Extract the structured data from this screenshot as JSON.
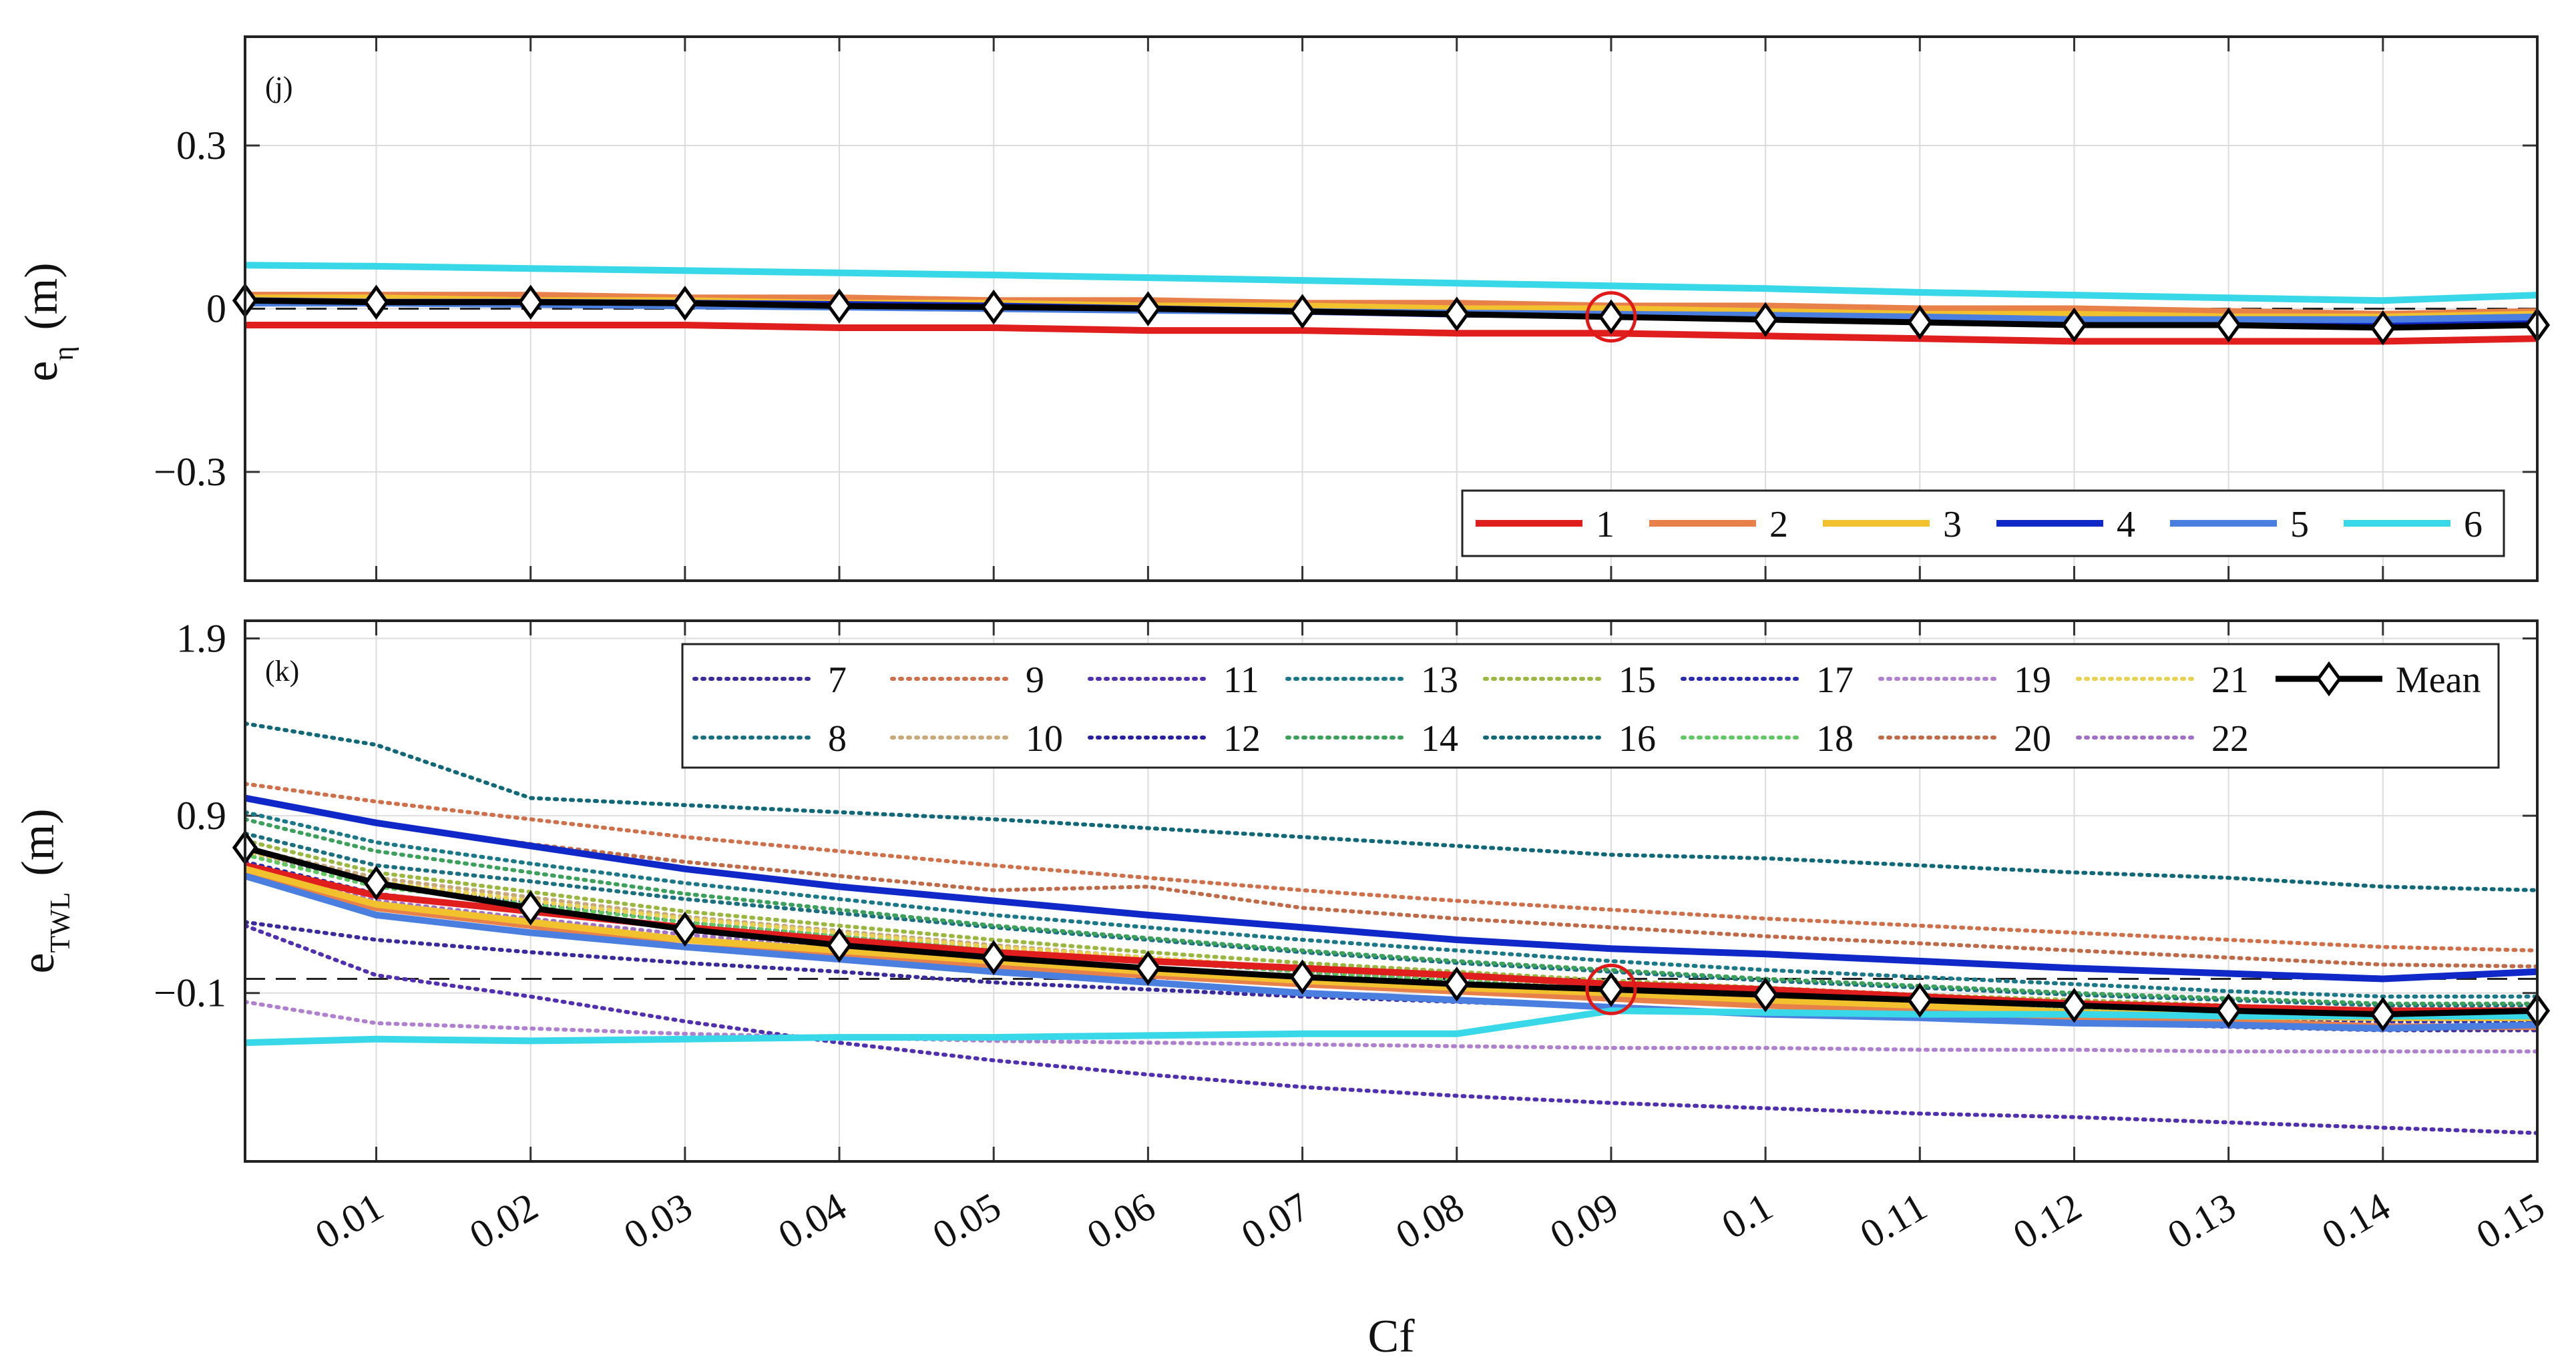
{
  "chart_data": [
    {
      "type": "line",
      "panel_label": "(j)",
      "ylabel": "e",
      "ylabel_subscript": "η",
      "ylabel_unit": "(m)",
      "xlabel": "",
      "x": [
        0.0015,
        0.01,
        0.02,
        0.03,
        0.04,
        0.05,
        0.06,
        0.07,
        0.08,
        0.09,
        0.1,
        0.11,
        0.12,
        0.13,
        0.14,
        0.15
      ],
      "xlim": [
        0.0015,
        0.15
      ],
      "ylim": [
        -0.5,
        0.5
      ],
      "yticks": [
        {
          "value": 0.3,
          "label": "0.3"
        },
        {
          "value": 0,
          "label": "0"
        },
        {
          "value": -0.3,
          "label": "−0.3"
        }
      ],
      "grid": true,
      "reference_line": {
        "y": 0,
        "style": "dashed"
      },
      "highlight_x": 0.09,
      "legend": {
        "placement": "bottom-right",
        "columns": 6
      },
      "series": [
        {
          "name": "1",
          "style": "solid",
          "color": "#e01e1e",
          "values": [
            -0.03,
            -0.03,
            -0.03,
            -0.03,
            -0.035,
            -0.035,
            -0.04,
            -0.04,
            -0.045,
            -0.045,
            -0.05,
            -0.055,
            -0.06,
            -0.06,
            -0.06,
            -0.055
          ]
        },
        {
          "name": "2",
          "style": "solid",
          "color": "#e8804a",
          "values": [
            0.025,
            0.025,
            0.025,
            0.02,
            0.02,
            0.015,
            0.015,
            0.01,
            0.01,
            0.005,
            0.005,
            0.0,
            0.0,
            -0.005,
            -0.01,
            -0.005
          ]
        },
        {
          "name": "3",
          "style": "solid",
          "color": "#f2c12e",
          "values": [
            0.02,
            0.02,
            0.015,
            0.015,
            0.01,
            0.01,
            0.005,
            0.005,
            0.0,
            0.0,
            -0.005,
            -0.01,
            -0.01,
            -0.015,
            -0.015,
            -0.01
          ]
        },
        {
          "name": "4",
          "style": "solid",
          "color": "#1028c8",
          "values": [
            0.015,
            0.012,
            0.012,
            0.01,
            0.008,
            0.005,
            0.0,
            -0.005,
            -0.01,
            -0.012,
            -0.015,
            -0.02,
            -0.025,
            -0.025,
            -0.03,
            -0.025
          ]
        },
        {
          "name": "5",
          "style": "solid",
          "color": "#4a7fe0",
          "values": [
            0.01,
            0.01,
            0.008,
            0.005,
            0.003,
            0.0,
            -0.003,
            -0.005,
            -0.008,
            -0.01,
            -0.012,
            -0.015,
            -0.02,
            -0.02,
            -0.02,
            -0.015
          ]
        },
        {
          "name": "6",
          "style": "solid",
          "color": "#38d8e8",
          "values": [
            0.08,
            0.078,
            0.074,
            0.07,
            0.066,
            0.062,
            0.057,
            0.052,
            0.047,
            0.042,
            0.037,
            0.03,
            0.025,
            0.02,
            0.015,
            0.025
          ]
        },
        {
          "name": "",
          "style": "mean",
          "color": "#000000",
          "values": [
            0.015,
            0.012,
            0.012,
            0.01,
            0.005,
            0.003,
            0.0,
            -0.005,
            -0.01,
            -0.015,
            -0.02,
            -0.025,
            -0.03,
            -0.03,
            -0.035,
            -0.03
          ]
        }
      ]
    },
    {
      "type": "line",
      "panel_label": "(k)",
      "ylabel": "e",
      "ylabel_subscript": "TWL",
      "ylabel_unit": "(m)",
      "xlabel": "Cf",
      "x": [
        0.0015,
        0.01,
        0.02,
        0.03,
        0.04,
        0.05,
        0.06,
        0.07,
        0.08,
        0.09,
        0.1,
        0.11,
        0.12,
        0.13,
        0.14,
        0.15
      ],
      "xlim": [
        0.0015,
        0.15
      ],
      "ylim": [
        -1.05,
        2.0
      ],
      "yticks": [
        {
          "value": 1.9,
          "label": "1.9"
        },
        {
          "value": 0.9,
          "label": "0.9"
        },
        {
          "value": -0.1,
          "label": "−0.1"
        }
      ],
      "xticks": [
        {
          "value": 0.01,
          "label": "0.01"
        },
        {
          "value": 0.02,
          "label": "0.02"
        },
        {
          "value": 0.03,
          "label": "0.03"
        },
        {
          "value": 0.04,
          "label": "0.04"
        },
        {
          "value": 0.05,
          "label": "0.05"
        },
        {
          "value": 0.06,
          "label": "0.06"
        },
        {
          "value": 0.07,
          "label": "0.07"
        },
        {
          "value": 0.08,
          "label": "0.08"
        },
        {
          "value": 0.09,
          "label": "0.09"
        },
        {
          "value": 0.1,
          "label": "0.1"
        },
        {
          "value": 0.11,
          "label": "0.11"
        },
        {
          "value": 0.12,
          "label": "0.12"
        },
        {
          "value": 0.13,
          "label": "0.13"
        },
        {
          "value": 0.14,
          "label": "0.14"
        },
        {
          "value": 0.15,
          "label": "0.15"
        }
      ],
      "grid": true,
      "reference_line": {
        "y": -0.02,
        "style": "dashed"
      },
      "highlight_x": 0.09,
      "legend": {
        "placement": "top-right",
        "columns": 9
      },
      "series": [
        {
          "name": "1",
          "style": "solid",
          "color": "#e01e1e",
          "values": [
            0.62,
            0.45,
            0.36,
            0.27,
            0.2,
            0.13,
            0.08,
            0.04,
            0.0,
            -0.05,
            -0.08,
            -0.12,
            -0.16,
            -0.18,
            -0.2,
            -0.2
          ]
        },
        {
          "name": "2",
          "style": "solid",
          "color": "#e8804a",
          "values": [
            0.58,
            0.38,
            0.28,
            0.16,
            0.11,
            0.05,
            0.0,
            -0.05,
            -0.09,
            -0.13,
            -0.17,
            -0.2,
            -0.24,
            -0.26,
            -0.29,
            -0.29
          ]
        },
        {
          "name": "3",
          "style": "solid",
          "color": "#f2c12e",
          "values": [
            0.6,
            0.4,
            0.3,
            0.2,
            0.14,
            0.08,
            0.02,
            -0.03,
            -0.07,
            -0.1,
            -0.14,
            -0.17,
            -0.21,
            -0.23,
            -0.24,
            -0.24
          ]
        },
        {
          "name": "4",
          "style": "solid",
          "color": "#1028c8",
          "values": [
            1.0,
            0.86,
            0.73,
            0.6,
            0.5,
            0.42,
            0.34,
            0.27,
            0.2,
            0.15,
            0.12,
            0.08,
            0.04,
            0.01,
            -0.02,
            0.02
          ]
        },
        {
          "name": "5",
          "style": "solid",
          "color": "#4a7fe0",
          "values": [
            0.56,
            0.34,
            0.24,
            0.16,
            0.09,
            0.02,
            -0.04,
            -0.1,
            -0.14,
            -0.18,
            -0.22,
            -0.24,
            -0.27,
            -0.28,
            -0.3,
            -0.28
          ]
        },
        {
          "name": "6",
          "style": "solid",
          "color": "#38d8e8",
          "values": [
            -0.38,
            -0.36,
            -0.37,
            -0.36,
            -0.35,
            -0.35,
            -0.34,
            -0.33,
            -0.33,
            -0.2,
            -0.21,
            -0.22,
            -0.22,
            -0.23,
            -0.23,
            -0.23
          ]
        },
        {
          "name": "7",
          "style": "dotted",
          "color": "#3a2a9e",
          "values": [
            0.3,
            0.2,
            0.13,
            0.07,
            0.02,
            -0.04,
            -0.08,
            -0.12,
            -0.15,
            -0.18,
            -0.21,
            -0.24,
            -0.27,
            -0.29,
            -0.31,
            -0.31
          ]
        },
        {
          "name": "8",
          "style": "dotted",
          "color": "#1a7080",
          "values": [
            0.8,
            0.62,
            0.53,
            0.43,
            0.35,
            0.27,
            0.2,
            0.13,
            0.07,
            0.02,
            -0.03,
            -0.07,
            -0.11,
            -0.14,
            -0.17,
            -0.17
          ]
        },
        {
          "name": "9",
          "style": "dotted",
          "color": "#d0704a",
          "values": [
            1.08,
            0.98,
            0.88,
            0.78,
            0.7,
            0.62,
            0.55,
            0.48,
            0.42,
            0.37,
            0.32,
            0.28,
            0.24,
            0.2,
            0.16,
            0.14
          ]
        },
        {
          "name": "10",
          "style": "dotted",
          "color": "#c8a878",
          "values": [
            0.72,
            0.55,
            0.44,
            0.33,
            0.25,
            0.17,
            0.1,
            0.04,
            -0.01,
            -0.06,
            -0.1,
            -0.14,
            -0.17,
            -0.2,
            -0.22,
            -0.22
          ]
        },
        {
          "name": "11",
          "style": "dotted",
          "color": "#5030b0",
          "values": [
            0.28,
            0.0,
            -0.12,
            -0.26,
            -0.38,
            -0.48,
            -0.56,
            -0.63,
            -0.68,
            -0.72,
            -0.75,
            -0.78,
            -0.8,
            -0.83,
            -0.86,
            -0.89
          ]
        },
        {
          "name": "12",
          "style": "dotted",
          "color": "#2820a0",
          "values": [
            0.7,
            0.52,
            0.41,
            0.3,
            0.22,
            0.14,
            0.08,
            0.02,
            -0.03,
            -0.08,
            -0.12,
            -0.16,
            -0.19,
            -0.22,
            -0.25,
            -0.25
          ]
        },
        {
          "name": "13",
          "style": "dotted",
          "color": "#1a7888",
          "values": [
            0.92,
            0.75,
            0.63,
            0.52,
            0.43,
            0.34,
            0.27,
            0.2,
            0.14,
            0.08,
            0.03,
            -0.01,
            -0.05,
            -0.09,
            -0.12,
            -0.12
          ]
        },
        {
          "name": "14",
          "style": "dotted",
          "color": "#3aa05a",
          "values": [
            0.88,
            0.7,
            0.58,
            0.46,
            0.37,
            0.28,
            0.21,
            0.14,
            0.08,
            0.03,
            -0.02,
            -0.06,
            -0.1,
            -0.13,
            -0.16,
            -0.16
          ]
        },
        {
          "name": "15",
          "style": "dotted",
          "color": "#9ab840",
          "values": [
            0.76,
            0.58,
            0.47,
            0.36,
            0.28,
            0.2,
            0.13,
            0.07,
            0.02,
            -0.03,
            -0.07,
            -0.11,
            -0.14,
            -0.17,
            -0.2,
            -0.2
          ]
        },
        {
          "name": "16",
          "style": "dotted",
          "color": "#106878",
          "values": [
            1.42,
            1.3,
            1.0,
            0.96,
            0.92,
            0.88,
            0.83,
            0.78,
            0.73,
            0.68,
            0.66,
            0.62,
            0.58,
            0.55,
            0.5,
            0.48
          ]
        },
        {
          "name": "17",
          "style": "dotted",
          "color": "#2a2ab0",
          "values": [
            0.64,
            0.46,
            0.36,
            0.26,
            0.18,
            0.1,
            0.04,
            -0.02,
            -0.06,
            -0.11,
            -0.15,
            -0.18,
            -0.21,
            -0.24,
            -0.26,
            -0.26
          ]
        },
        {
          "name": "18",
          "style": "dotted",
          "color": "#60c860",
          "values": [
            0.68,
            0.5,
            0.4,
            0.3,
            0.22,
            0.15,
            0.08,
            0.02,
            -0.03,
            -0.08,
            -0.12,
            -0.15,
            -0.19,
            -0.21,
            -0.23,
            -0.23
          ]
        },
        {
          "name": "19",
          "style": "dotted",
          "color": "#b080d0",
          "values": [
            -0.15,
            -0.27,
            -0.3,
            -0.33,
            -0.35,
            -0.37,
            -0.38,
            -0.39,
            -0.4,
            -0.41,
            -0.41,
            -0.42,
            -0.42,
            -0.43,
            -0.43,
            -0.43
          ]
        },
        {
          "name": "20",
          "style": "dotted",
          "color": "#c06a48",
          "values": [
            1.0,
            0.86,
            0.74,
            0.64,
            0.56,
            0.48,
            0.5,
            0.38,
            0.32,
            0.27,
            0.22,
            0.18,
            0.14,
            0.1,
            0.06,
            0.05
          ]
        },
        {
          "name": "21",
          "style": "dotted",
          "color": "#e8d050",
          "values": [
            0.7,
            0.53,
            0.42,
            0.32,
            0.24,
            0.16,
            0.1,
            0.04,
            -0.01,
            -0.06,
            -0.1,
            -0.14,
            -0.17,
            -0.2,
            -0.23,
            -0.23
          ]
        },
        {
          "name": "22",
          "style": "dotted",
          "color": "#a070c8",
          "values": [
            0.6,
            0.42,
            0.32,
            0.23,
            0.15,
            0.08,
            0.02,
            -0.04,
            -0.08,
            -0.13,
            -0.17,
            -0.2,
            -0.23,
            -0.26,
            -0.28,
            -0.28
          ]
        },
        {
          "name": "Mean",
          "style": "mean",
          "color": "#000000",
          "values": [
            0.72,
            0.52,
            0.38,
            0.26,
            0.17,
            0.1,
            0.04,
            -0.01,
            -0.05,
            -0.08,
            -0.11,
            -0.14,
            -0.17,
            -0.2,
            -0.22,
            -0.2
          ]
        }
      ]
    }
  ]
}
